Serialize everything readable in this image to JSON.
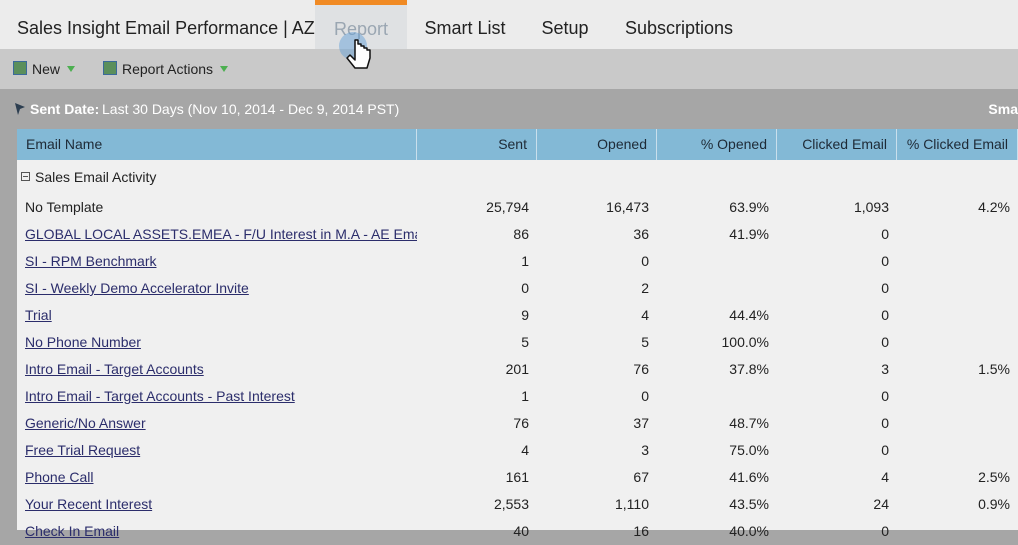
{
  "header": {
    "title": "Sales Insight Email Performance | AZ",
    "tabs": [
      "Report",
      "Smart List",
      "Setup",
      "Subscriptions"
    ]
  },
  "toolbar": {
    "buttons": [
      "New",
      "Report Actions"
    ]
  },
  "filter": {
    "label": "Sent Date:",
    "value": "Last 30 Days (Nov 10, 2014 - Dec 9, 2014 PST)",
    "right": "Sma"
  },
  "table": {
    "columns": [
      "Email Name",
      "Sent",
      "Opened",
      "% Opened",
      "Clicked Email",
      "% Clicked Email"
    ],
    "group": "Sales Email Activity",
    "rows": [
      [
        "No Template",
        "25,794",
        "16,473",
        "63.9%",
        "1,093",
        "4.2%"
      ],
      [
        "GLOBAL LOCAL ASSETS.EMEA - F/U Interest in M.A - AE Email Te...",
        "86",
        "36",
        "41.9%",
        "0",
        null
      ],
      [
        "SI - RPM Benchmark",
        "1",
        "0",
        null,
        "0",
        null
      ],
      [
        "SI - Weekly Demo Accelerator Invite",
        "0",
        "2",
        null,
        "0",
        null
      ],
      [
        "Trial",
        "9",
        "4",
        "44.4%",
        "0",
        null
      ],
      [
        "No Phone Number",
        "5",
        "5",
        "100.0%",
        "0",
        null
      ],
      [
        "Intro Email - Target Accounts",
        "201",
        "76",
        "37.8%",
        "3",
        "1.5%"
      ],
      [
        "Intro Email - Target Accounts - Past Interest",
        "1",
        "0",
        null,
        "0",
        null
      ],
      [
        "Generic/No Answer",
        "76",
        "37",
        "48.7%",
        "0",
        null
      ],
      [
        "Free Trial Request",
        "4",
        "3",
        "75.0%",
        "0",
        null
      ],
      [
        "Phone Call",
        "161",
        "67",
        "41.6%",
        "4",
        "2.5%"
      ],
      [
        "Your Recent Interest",
        "2,553",
        "1,110",
        "43.5%",
        "24",
        "0.9%"
      ],
      [
        "Check In Email",
        "40",
        "16",
        "40.0%",
        "0",
        null
      ]
    ]
  }
}
